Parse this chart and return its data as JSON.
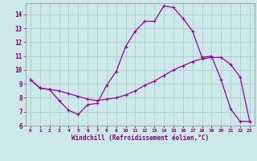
{
  "xlabel": "Windchill (Refroidissement éolien,°C)",
  "curve1_x": [
    0,
    1,
    2,
    3,
    4,
    5,
    6,
    7,
    8,
    9,
    10,
    11,
    12,
    13,
    14,
    15,
    16,
    17,
    18,
    19,
    20,
    21,
    22,
    23
  ],
  "curve1_y": [
    9.3,
    8.7,
    8.6,
    7.8,
    7.1,
    6.8,
    7.5,
    7.6,
    8.9,
    9.9,
    11.7,
    12.8,
    13.5,
    13.5,
    14.6,
    14.5,
    13.7,
    12.8,
    10.9,
    11.0,
    9.3,
    7.2,
    6.3,
    6.3
  ],
  "curve2_x": [
    0,
    1,
    2,
    3,
    4,
    5,
    6,
    7,
    8,
    9,
    10,
    11,
    12,
    13,
    14,
    15,
    16,
    17,
    18,
    19,
    20,
    21,
    22,
    23
  ],
  "curve2_y": [
    9.3,
    8.7,
    8.6,
    8.5,
    8.3,
    8.1,
    7.9,
    7.8,
    7.9,
    8.0,
    8.2,
    8.5,
    8.9,
    9.2,
    9.6,
    10.0,
    10.3,
    10.6,
    10.8,
    10.9,
    10.9,
    10.4,
    9.5,
    6.3
  ],
  "line_color": "#990099",
  "bg_color": "#cce8e8",
  "grid_color": "#aad0d0",
  "spine_color": "#888888",
  "text_color": "#800080",
  "xlabel_color": "#800080",
  "xlim": [
    -0.5,
    23.5
  ],
  "ylim": [
    6.0,
    14.8
  ],
  "yticks": [
    6,
    7,
    8,
    9,
    10,
    11,
    12,
    13,
    14
  ],
  "xticks": [
    0,
    1,
    2,
    3,
    4,
    5,
    6,
    7,
    8,
    9,
    10,
    11,
    12,
    13,
    14,
    15,
    16,
    17,
    18,
    19,
    20,
    21,
    22,
    23
  ],
  "xtick_labels": [
    "0",
    "1",
    "2",
    "3",
    "4",
    "5",
    "6",
    "7",
    "8",
    "9",
    "10",
    "11",
    "12",
    "13",
    "14",
    "15",
    "16",
    "17",
    "18",
    "19",
    "20",
    "21",
    "22",
    "23"
  ],
  "ytick_labels": [
    "6",
    "7",
    "8",
    "9",
    "10",
    "11",
    "12",
    "13",
    "14"
  ]
}
